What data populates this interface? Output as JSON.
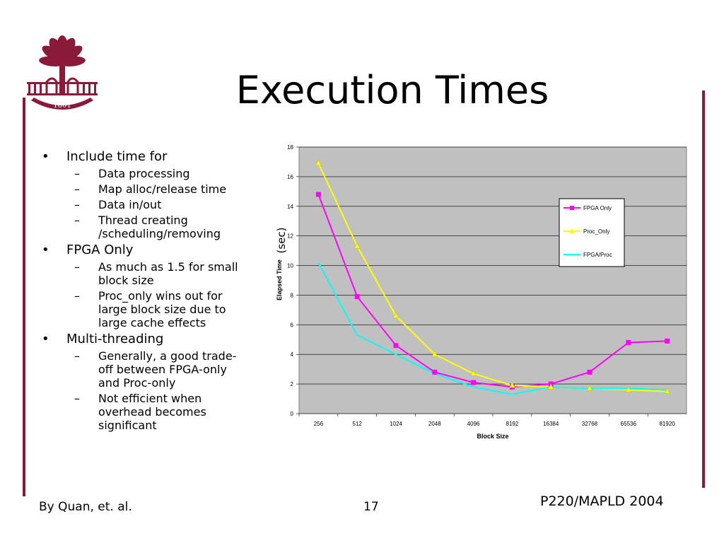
{
  "slide": {
    "title": "Execution Times",
    "ylabel_note": "(sec)",
    "footer_left": "By Quan, et. al.",
    "footer_center": "17",
    "footer_right": "P220/MAPLD 2004",
    "accent": "#8b1a3a",
    "logo_year": "1801"
  },
  "bullets": [
    {
      "text": "Include time for",
      "subs": [
        "Data processing",
        "Map alloc/release time",
        "Data in/out",
        "Thread creating /scheduling/removing"
      ]
    },
    {
      "text": "FPGA Only",
      "subs": [
        "As much as 1.5 for small block size",
        "Proc_only wins out for large block size due to large cache effects"
      ]
    },
    {
      "text": "Multi-threading",
      "subs": [
        "Generally, a good trade-off between FPGA-only and Proc-only",
        "Not efficient when overhead becomes significant"
      ]
    }
  ],
  "chart_data": {
    "type": "line",
    "categories": [
      "256",
      "512",
      "1024",
      "2048",
      "4096",
      "8192",
      "16384",
      "32768",
      "65536",
      "81920"
    ],
    "xlabel": "Block Size",
    "ylabel": "Elapsed Time",
    "ylim": [
      0,
      18
    ],
    "yticks": [
      "0",
      "2",
      "4",
      "6",
      "8",
      "10",
      "12",
      "14",
      "16",
      "18"
    ],
    "grid": true,
    "legend": "right",
    "series": [
      {
        "name": "FPGA Only",
        "color": "#ff00ff",
        "marker": "square",
        "values": [
          14.8,
          7.9,
          4.6,
          2.8,
          2.1,
          1.8,
          2.0,
          2.8,
          4.8,
          4.9
        ]
      },
      {
        "name": "Proc_Only",
        "color": "#ffff00",
        "marker": "triangle",
        "values": [
          16.9,
          11.3,
          6.6,
          4.0,
          2.7,
          1.9,
          1.8,
          1.7,
          1.6,
          1.5
        ]
      },
      {
        "name": "FPGA/Proc",
        "color": "#00ffff",
        "marker": "none",
        "values": [
          10.2,
          5.3,
          4.0,
          2.7,
          1.8,
          1.3,
          1.8,
          1.7,
          1.7,
          1.6
        ]
      }
    ]
  }
}
